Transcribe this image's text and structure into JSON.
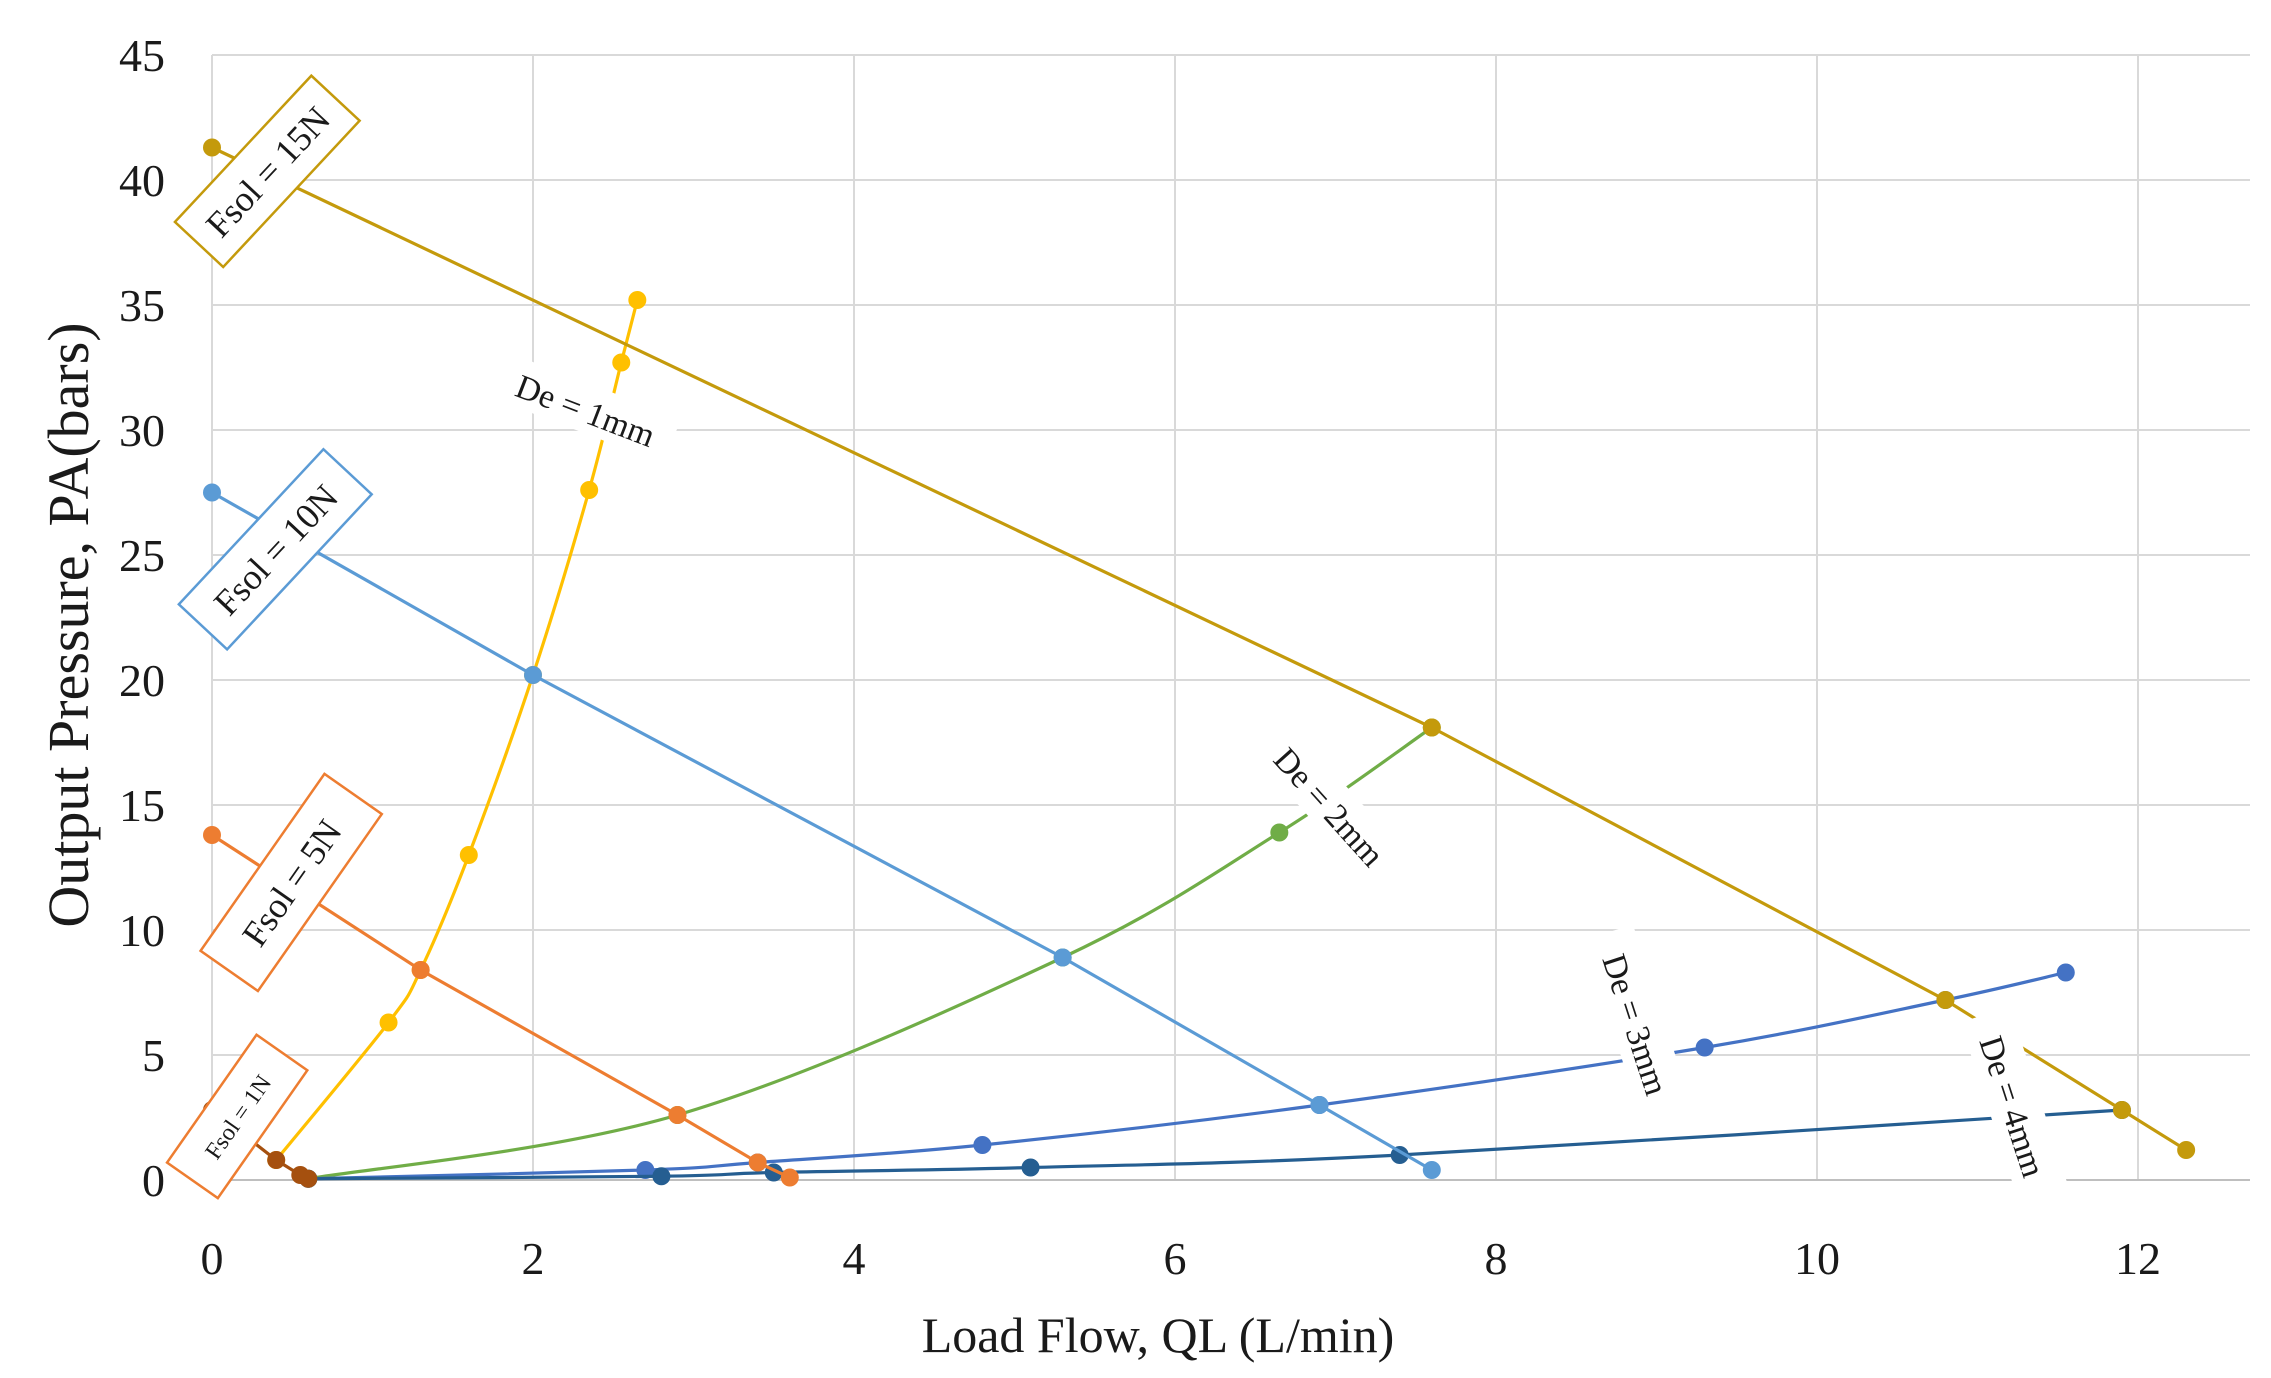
{
  "chart_data": {
    "type": "line",
    "title": "",
    "xlabel": "Load Flow, QL (L/min)",
    "ylabel": "Output Pressure, PA(bars)",
    "xlim": [
      0,
      12.5
    ],
    "ylim": [
      0,
      45
    ],
    "x_ticks": [
      0,
      2,
      4,
      6,
      8,
      10,
      12
    ],
    "y_ticks": [
      0,
      5,
      10,
      15,
      20,
      25,
      30,
      35,
      40,
      45
    ],
    "grid": true,
    "force_lines": [
      {
        "name": "Fsol = 15N",
        "color": "#c49a0c",
        "points": [
          [
            0,
            41.3
          ],
          [
            7.6,
            18.1
          ],
          [
            10.8,
            7.2
          ],
          [
            11.9,
            2.8
          ],
          [
            12.3,
            1.2
          ]
        ]
      },
      {
        "name": "Fsol = 10N",
        "color": "#5b9bd5",
        "points": [
          [
            0,
            27.5
          ],
          [
            2.0,
            20.2
          ],
          [
            5.3,
            8.9
          ],
          [
            6.9,
            3.0
          ],
          [
            7.6,
            0.4
          ]
        ]
      },
      {
        "name": "Fsol = 5N",
        "color": "#ed7d31",
        "points": [
          [
            0,
            13.8
          ],
          [
            1.3,
            8.4
          ],
          [
            2.9,
            2.6
          ],
          [
            3.4,
            0.7
          ],
          [
            3.6,
            0.1
          ]
        ]
      },
      {
        "name": "Fsol = 1N",
        "color": "#a5500f",
        "points": [
          [
            0,
            2.8
          ],
          [
            0.4,
            0.8
          ],
          [
            0.55,
            0.2
          ],
          [
            0.6,
            0.05
          ]
        ]
      }
    ],
    "diameter_curves": [
      {
        "name": "De = 1mm",
        "color": "#ffc000",
        "points": [
          [
            0.4,
            0.8
          ],
          [
            1.1,
            6.3
          ],
          [
            1.3,
            8.4
          ],
          [
            1.6,
            13.0
          ],
          [
            2.0,
            20.2
          ],
          [
            2.35,
            27.6
          ],
          [
            2.55,
            32.7
          ],
          [
            2.65,
            35.2
          ]
        ]
      },
      {
        "name": "De = 2mm",
        "color": "#70ad47",
        "points": [
          [
            0.6,
            0.05
          ],
          [
            2.9,
            2.6
          ],
          [
            5.3,
            8.9
          ],
          [
            6.65,
            13.9
          ],
          [
            7.6,
            18.1
          ]
        ]
      },
      {
        "name": "De = 3mm",
        "color": "#4472c4",
        "points": [
          [
            0.6,
            0.05
          ],
          [
            2.7,
            0.4
          ],
          [
            3.4,
            0.7
          ],
          [
            4.8,
            1.4
          ],
          [
            6.9,
            3.0
          ],
          [
            9.3,
            5.3
          ],
          [
            10.8,
            7.2
          ],
          [
            11.55,
            8.3
          ]
        ]
      },
      {
        "name": "De = 4mm",
        "color": "#255e91",
        "points": [
          [
            0.6,
            0.05
          ],
          [
            2.8,
            0.15
          ],
          [
            3.5,
            0.3
          ],
          [
            5.1,
            0.5
          ],
          [
            7.4,
            1.0
          ],
          [
            11.9,
            2.8
          ]
        ]
      }
    ],
    "annotations": {
      "f15": "Fsol = 15N",
      "f10": "Fsol = 10N",
      "f5": "Fsol = 5N",
      "f1": "Fsol = 1N",
      "d1": "De = 1mm",
      "d2": "De = 2mm",
      "d3": "De = 3mm",
      "d4": "De = 4mm"
    }
  }
}
